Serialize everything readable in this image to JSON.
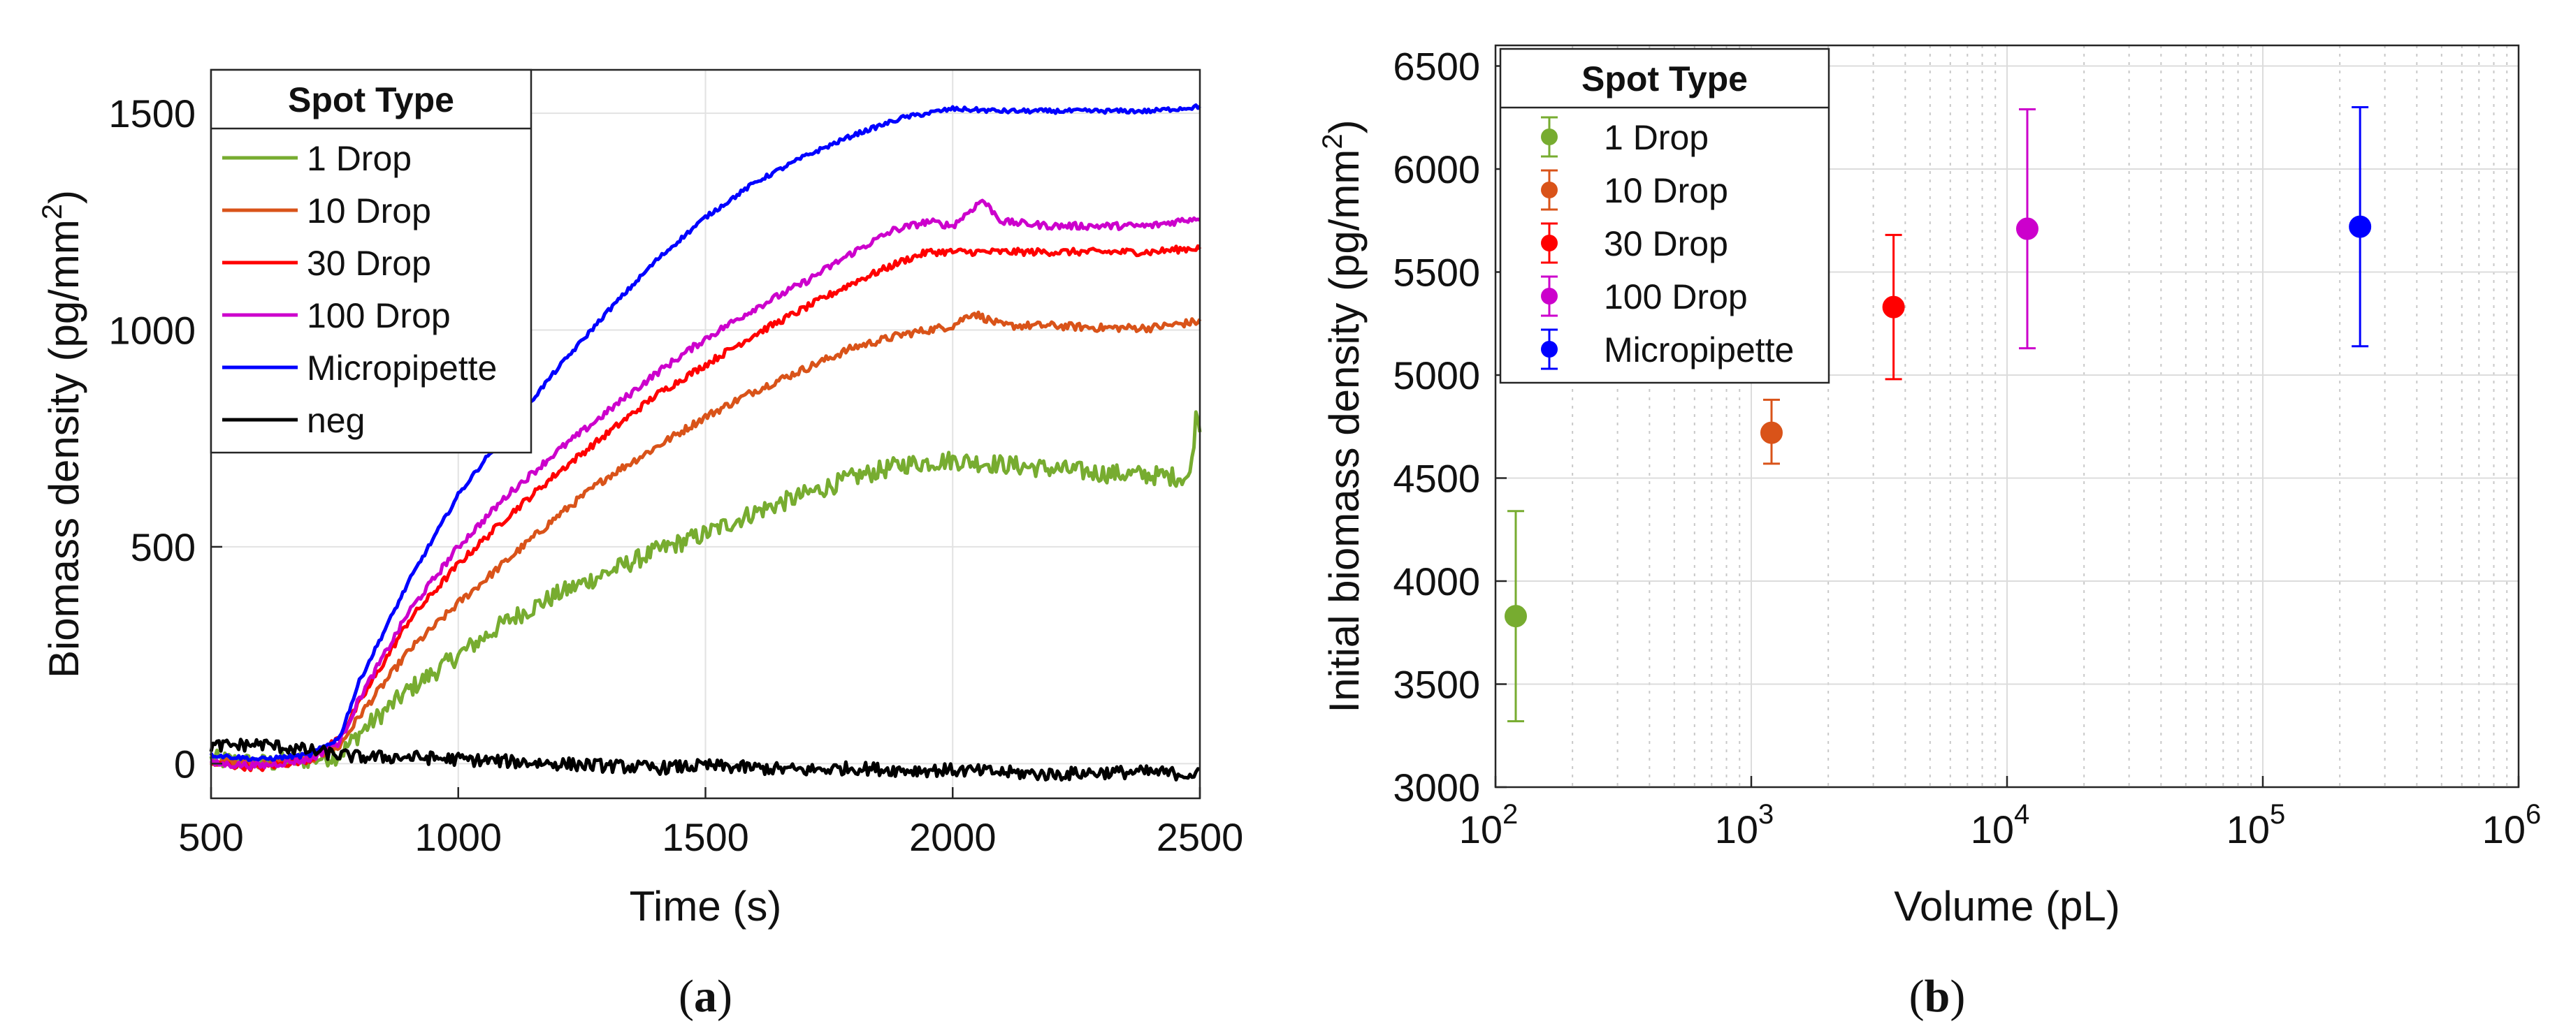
{
  "chart_data": [
    {
      "id": "panel_a",
      "type": "line",
      "caption": "(a)",
      "caption_letter": "a",
      "xlabel": "Time (s)",
      "ylabel": "Biomass density (pg/mm",
      "ylabel_sup": "2",
      "ylabel_end": ")",
      "xlim": [
        500,
        2500
      ],
      "ylim": [
        -80,
        1600
      ],
      "xticks": [
        500,
        1000,
        1500,
        2000,
        2500
      ],
      "yticks": [
        0,
        500,
        1000,
        1500
      ],
      "grid": true,
      "legend": {
        "title": "Spot Type",
        "placement": "top-left",
        "entries": [
          "1 Drop",
          "10 Drop",
          "30 Drop",
          "100 Drop",
          "Micropipette",
          "neg"
        ]
      },
      "series": [
        {
          "name": "1 Drop",
          "color": "#77AC30",
          "points": [
            [
              500,
              10
            ],
            [
              600,
              0
            ],
            [
              700,
              10
            ],
            [
              760,
              20
            ],
            [
              800,
              70
            ],
            [
              900,
              170
            ],
            [
              1000,
              250
            ],
            [
              1100,
              330
            ],
            [
              1200,
              390
            ],
            [
              1300,
              440
            ],
            [
              1400,
              490
            ],
            [
              1500,
              530
            ],
            [
              1600,
              580
            ],
            [
              1700,
              620
            ],
            [
              1800,
              660
            ],
            [
              1900,
              690
            ],
            [
              2000,
              700
            ],
            [
              2100,
              690
            ],
            [
              2200,
              680
            ],
            [
              2300,
              670
            ],
            [
              2400,
              665
            ],
            [
              2480,
              660
            ],
            [
              2495,
              830
            ],
            [
              2500,
              760
            ]
          ],
          "noise": 22
        },
        {
          "name": "10 Drop",
          "color": "#D95319",
          "points": [
            [
              500,
              5
            ],
            [
              600,
              0
            ],
            [
              700,
              10
            ],
            [
              760,
              40
            ],
            [
              800,
              110
            ],
            [
              900,
              260
            ],
            [
              1000,
              370
            ],
            [
              1100,
              470
            ],
            [
              1200,
              570
            ],
            [
              1300,
              660
            ],
            [
              1400,
              730
            ],
            [
              1500,
              800
            ],
            [
              1600,
              860
            ],
            [
              1700,
              910
            ],
            [
              1800,
              960
            ],
            [
              1900,
              990
            ],
            [
              2000,
              1010
            ],
            [
              2040,
              1040
            ],
            [
              2100,
              1010
            ],
            [
              2200,
              1010
            ],
            [
              2300,
              1005
            ],
            [
              2400,
              1005
            ],
            [
              2500,
              1020
            ]
          ],
          "noise": 9
        },
        {
          "name": "30 Drop",
          "color": "#FF0000",
          "points": [
            [
              500,
              0
            ],
            [
              600,
              -10
            ],
            [
              700,
              10
            ],
            [
              760,
              60
            ],
            [
              800,
              140
            ],
            [
              900,
              330
            ],
            [
              1000,
              460
            ],
            [
              1100,
              570
            ],
            [
              1200,
              670
            ],
            [
              1300,
              760
            ],
            [
              1400,
              850
            ],
            [
              1500,
              920
            ],
            [
              1600,
              990
            ],
            [
              1700,
              1050
            ],
            [
              1800,
              1110
            ],
            [
              1900,
              1160
            ],
            [
              1950,
              1180
            ],
            [
              2000,
              1180
            ],
            [
              2100,
              1180
            ],
            [
              2200,
              1180
            ],
            [
              2300,
              1180
            ],
            [
              2400,
              1180
            ],
            [
              2500,
              1190
            ]
          ],
          "noise": 8
        },
        {
          "name": "100 Drop",
          "color": "#CC00CC",
          "points": [
            [
              500,
              0
            ],
            [
              600,
              -5
            ],
            [
              700,
              10
            ],
            [
              760,
              50
            ],
            [
              800,
              150
            ],
            [
              900,
              350
            ],
            [
              1000,
              500
            ],
            [
              1100,
              620
            ],
            [
              1200,
              720
            ],
            [
              1300,
              810
            ],
            [
              1400,
              900
            ],
            [
              1500,
              980
            ],
            [
              1600,
              1050
            ],
            [
              1700,
              1110
            ],
            [
              1800,
              1180
            ],
            [
              1880,
              1230
            ],
            [
              1950,
              1250
            ],
            [
              2000,
              1240
            ],
            [
              2060,
              1300
            ],
            [
              2100,
              1250
            ],
            [
              2200,
              1240
            ],
            [
              2300,
              1240
            ],
            [
              2400,
              1240
            ],
            [
              2500,
              1260
            ]
          ],
          "noise": 8
        },
        {
          "name": "Micropipette",
          "color": "#0000FF",
          "points": [
            [
              500,
              20
            ],
            [
              600,
              10
            ],
            [
              700,
              20
            ],
            [
              760,
              60
            ],
            [
              800,
              190
            ],
            [
              900,
              420
            ],
            [
              1000,
              620
            ],
            [
              1100,
              770
            ],
            [
              1200,
              910
            ],
            [
              1300,
              1040
            ],
            [
              1400,
              1160
            ],
            [
              1500,
              1260
            ],
            [
              1600,
              1340
            ],
            [
              1700,
              1400
            ],
            [
              1800,
              1450
            ],
            [
              1900,
              1490
            ],
            [
              2000,
              1510
            ],
            [
              2100,
              1505
            ],
            [
              2200,
              1505
            ],
            [
              2300,
              1505
            ],
            [
              2400,
              1505
            ],
            [
              2500,
              1515
            ]
          ],
          "noise": 5
        },
        {
          "name": "neg",
          "color": "#000000",
          "points": [
            [
              500,
              40
            ],
            [
              600,
              45
            ],
            [
              700,
              30
            ],
            [
              760,
              20
            ],
            [
              800,
              15
            ],
            [
              900,
              15
            ],
            [
              1000,
              10
            ],
            [
              1100,
              5
            ],
            [
              1200,
              0
            ],
            [
              1300,
              -5
            ],
            [
              1400,
              -10
            ],
            [
              1500,
              -5
            ],
            [
              1600,
              -10
            ],
            [
              1700,
              -15
            ],
            [
              1800,
              -10
            ],
            [
              1900,
              -15
            ],
            [
              2000,
              -15
            ],
            [
              2100,
              -20
            ],
            [
              2200,
              -25
            ],
            [
              2300,
              -20
            ],
            [
              2400,
              -20
            ],
            [
              2500,
              -25
            ]
          ],
          "noise": 15
        }
      ]
    },
    {
      "id": "panel_b",
      "type": "scatter",
      "caption": "(b)",
      "caption_letter": "b",
      "xlabel": "Volume (pL)",
      "ylabel": "Initial biomass density (pg/mm",
      "ylabel_sup": "2",
      "ylabel_end": ")",
      "xscale": "log",
      "xlim": [
        100,
        1000000
      ],
      "ylim": [
        3000,
        6600
      ],
      "xtick_exponents": [
        "2",
        "3",
        "4",
        "5",
        "6"
      ],
      "xtick_base": "10",
      "yticks": [
        3000,
        3500,
        4000,
        4500,
        5000,
        5500,
        6000,
        6500
      ],
      "grid": true,
      "legend": {
        "title": "Spot Type",
        "placement": "top-left",
        "entries": [
          "1 Drop",
          "10 Drop",
          "30 Drop",
          "100 Drop",
          "Micropipette"
        ]
      },
      "series": [
        {
          "name": "1 Drop",
          "color": "#77AC30",
          "x": 120,
          "y": 3830,
          "err_low": 3320,
          "err_high": 4340
        },
        {
          "name": "10 Drop",
          "color": "#D95319",
          "x": 1200,
          "y": 4720,
          "err_low": 4570,
          "err_high": 4880
        },
        {
          "name": "30 Drop",
          "color": "#FF0000",
          "x": 3600,
          "y": 5330,
          "err_low": 4980,
          "err_high": 5680
        },
        {
          "name": "100 Drop",
          "color": "#CC00CC",
          "x": 12000,
          "y": 5710,
          "err_low": 5130,
          "err_high": 6290
        },
        {
          "name": "Micropipette",
          "color": "#0000FF",
          "x": 240000,
          "y": 5720,
          "err_low": 5140,
          "err_high": 6300
        }
      ]
    }
  ]
}
